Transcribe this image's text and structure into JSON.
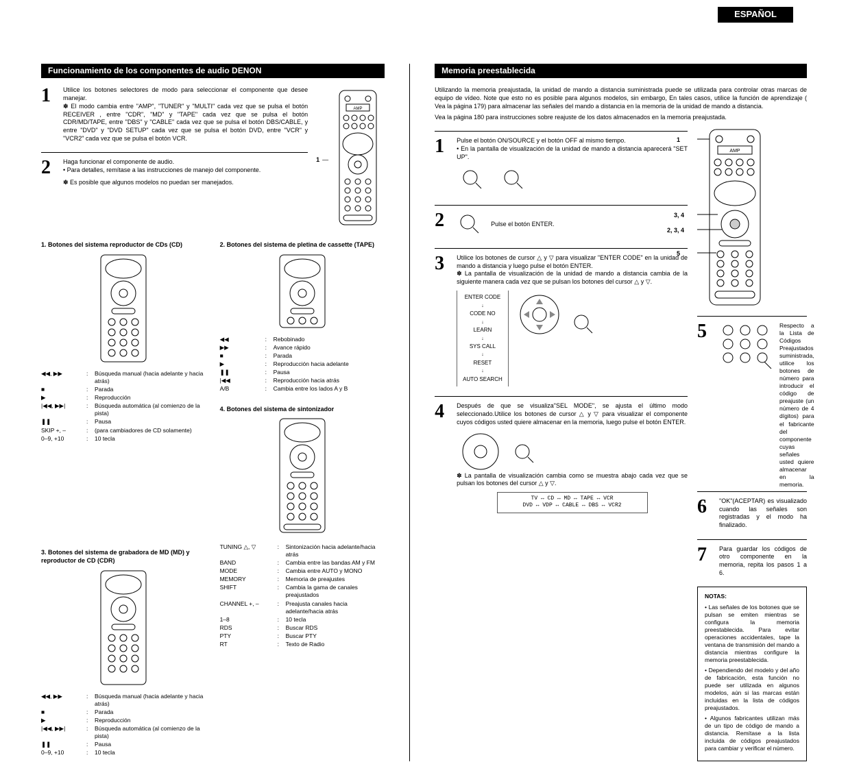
{
  "lang_tab": "ESPAÑOL",
  "left": {
    "header": "Funcionamiento de los componentes de audio DENON",
    "step1": {
      "text": "Utilice los botones selectores de modo para seleccionar el componente que desee manejar.",
      "note": "El modo cambia entre \"AMP\", \"TUNER\" y \"MULTI\" cada vez que se pulsa el botón RECEIVER , entre \"CDR\", \"MD\" y \"TAPE\" cada vez que se pulsa el botón CDR/MD/TAPE, entre \"DBS\" y \"CABLE\" cada vez que se pulsa el botón DBS/CABLE, y entre \"DVD\" y \"DVD SETUP\" cada vez que se pulsa el botón DVD, entre \"VCR\" y \"VCR2\" cada vez que se pulsa el botón VCR."
    },
    "step2": {
      "text": "Haga funcionar el componente de audio.",
      "bullet": "Para detalles, remítase a las instrucciones de manejo del componente.",
      "asterisk": "Es posible que algunos modelos no puedan ser manejados."
    },
    "sub1_title": "1. Botones del sistema reproductor de CDs (CD)",
    "sub2_title": "2. Botones del sistema de pletina de cassette (TAPE)",
    "sub3_title": "3. Botones del sistema de grabadora de MD (MD) y reproductor de CD (CDR)",
    "sub4_title": "4. Botones del sistema de sintonizador",
    "cd_buttons": [
      {
        "sym": "◀◀, ▶▶",
        "desc": "Búsqueda manual (hacia adelante y hacia atrás)"
      },
      {
        "sym": "■",
        "desc": "Parada"
      },
      {
        "sym": "▶",
        "desc": "Reproducción"
      },
      {
        "sym": "|◀◀, ▶▶|",
        "desc": "Búsqueda automática (al comienzo de la pista)"
      },
      {
        "sym": "❚❚",
        "desc": "Pausa"
      },
      {
        "sym": "SKIP +, –",
        "desc": "(para cambiadores de CD solamente)"
      },
      {
        "sym": "0–9, +10",
        "desc": "10 tecla"
      }
    ],
    "tape_buttons": [
      {
        "sym": "◀◀",
        "desc": "Rebobinado"
      },
      {
        "sym": "▶▶",
        "desc": "Avance rápido"
      },
      {
        "sym": "■",
        "desc": "Parada"
      },
      {
        "sym": "▶",
        "desc": "Reproducción hacia adelante"
      },
      {
        "sym": "❚❚",
        "desc": "Pausa"
      },
      {
        "sym": "|◀◀",
        "desc": "Reproducción hacia atrás"
      },
      {
        "sym": "A/B",
        "desc": "Cambia entre los lados A y B"
      }
    ],
    "md_buttons": [
      {
        "sym": "◀◀, ▶▶",
        "desc": "Búsqueda manual (hacia adelante y hacia atrás)"
      },
      {
        "sym": "■",
        "desc": "Parada"
      },
      {
        "sym": "▶",
        "desc": "Reproducción"
      },
      {
        "sym": "|◀◀, ▶▶|",
        "desc": "Búsqueda automática (al comienzo de la pista)"
      },
      {
        "sym": "❚❚",
        "desc": "Pausa"
      },
      {
        "sym": "0–9, +10",
        "desc": "10 tecla"
      }
    ],
    "tuner_buttons": [
      {
        "sym": "TUNING △, ▽",
        "desc": "Sintonización hacia adelante/hacia atrás"
      },
      {
        "sym": "BAND",
        "desc": "Cambia entre las bandas AM y FM"
      },
      {
        "sym": "MODE",
        "desc": "Cambia entre AUTO y MONO"
      },
      {
        "sym": "MEMORY",
        "desc": "Memoria de preajustes"
      },
      {
        "sym": "SHIFT",
        "desc": "Cambia la gama de canales preajustados"
      },
      {
        "sym": "CHANNEL +, –",
        "desc": "Preajusta canales hacia adelante/hacia atrás"
      },
      {
        "sym": "1–8",
        "desc": "10 tecla"
      },
      {
        "sym": "RDS",
        "desc": "Buscar RDS"
      },
      {
        "sym": "PTY",
        "desc": "Buscar PTY"
      },
      {
        "sym": "RT",
        "desc": "Texto de Radio"
      }
    ],
    "callout1": "1"
  },
  "right": {
    "header": "Memoria preestablecida",
    "intro": "Utilizando la memoria preajustada, la unidad de mando a distancia suministrada puede se utilizada para controlar otras marcas de equipo de vídeo. Note que esto no es posible para algunos modelos, sin embargo, En tales casos, utilice la función de aprendizaje ( Vea la página 179) para almacenar las señales del mando a distancia en la memoria de la unidad de mando a distancia.",
    "intro2": "Vea la página 180 para instrucciones sobre reajuste de los datos almacenados en la memoria preajustada.",
    "step1": {
      "text": "Pulse el botón ON/SOURCE y el botón OFF al mismo tiempo.",
      "bullet": "En la pantalla de visualización de la unidad de mando a distancia aparecerá \"SET UP\"."
    },
    "step2": {
      "text": "Pulse el botón ENTER."
    },
    "step3": {
      "text": "Utilice los botones de cursor △ y ▽ para visualizar \"ENTER CODE\" en la unidad de mando a distancia y luego pulse el botón ENTER.",
      "asterisk": "La pantalla de visualización de la unidad de mando a distancia cambia de la siguiente manera cada vez que se pulsan los botones del cursor △ y ▽."
    },
    "step3_labels": [
      "ENTER CODE",
      "CODE NO",
      "LEARN",
      "SYS CALL",
      "RESET",
      "AUTO SEARCH"
    ],
    "step4": {
      "text": "Después de que se visualiza\"SEL MODE\", se ajusta el último modo seleccionado.Utilice los botones de cursor △ y ▽ para visualizar el componente cuyos códigos usted quiere almacenar en la memoria, luego pulse el botón ENTER.",
      "asterisk": "La pantalla de visualización cambia como se muestra abajo cada vez que se pulsan los botones del cursor △ y ▽."
    },
    "step4_seq": "TV ↔ CD ↔ MD ↔ TAPE ↔ VCR\nDVD ↔ VDP ↔ CABLE ↔ DBS ↔ VCR2",
    "step5": {
      "text": "Respecto a la Lista de Códigos Preajustados suministrada, utilice los botones de número para introducir el código de preajuste (un número de 4 dígitos) para el fabricante del componente cuyas señales usted quiere almacenar en la memoria."
    },
    "step6": {
      "text": "\"OK\"(ACEPTAR) es visualizado cuando las señales son registradas y el modo ha finalizado."
    },
    "step7": {
      "text": "Para guardar los códigos de otro componente en la memoria, repita los pasos 1 a 6."
    },
    "notes_title": "NOTAS:",
    "notes": [
      "Las señales de los botones que se pulsan se emiten mientras se configura la memoria preestablecida. Para evitar operaciones accidentales, tape la ventana de transmisión del mando a distancia mientras configure la memoria preestablecida.",
      "Dependiendo del modelo y del año de fabricación, esta función no puede ser utilizada en algunos modelos, aún si las marcas están incluidas en la lista de códigos preajustados.",
      "Algunos fabricantes utilizan más de un tipo de código de mando a distancia. Remítase a la lista incluida de códigos preajustados para cambiar y verificar el número."
    ],
    "callouts": {
      "c1": "1",
      "c34": "3, 4",
      "c234": "2, 3, 4",
      "c5": "5"
    }
  }
}
